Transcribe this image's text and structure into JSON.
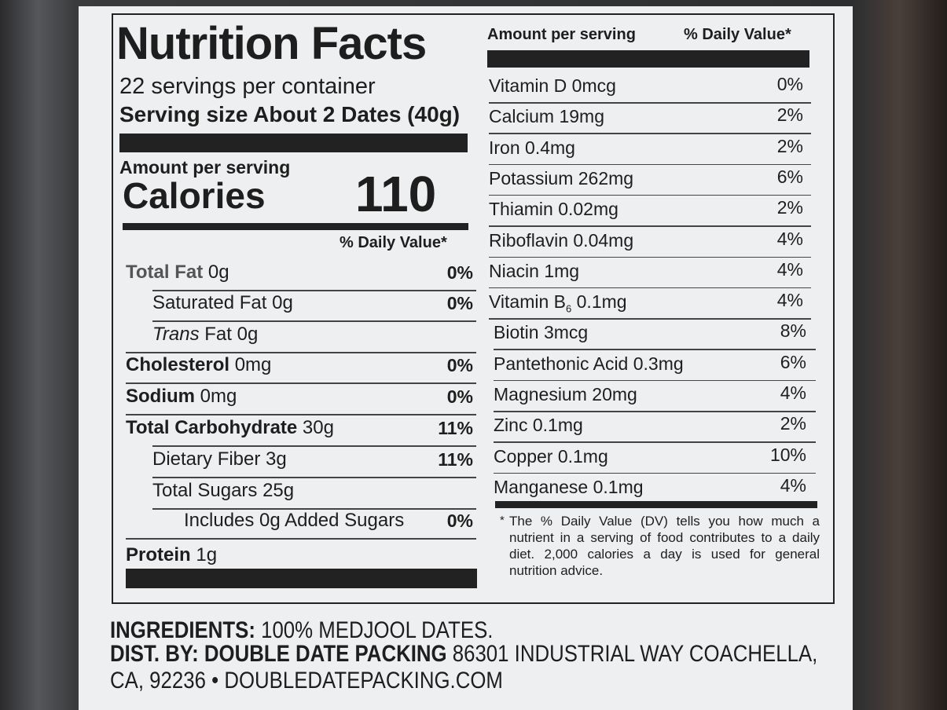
{
  "label": {
    "title": "Nutrition Facts",
    "servings": "22 servings per container",
    "serving_size_label": "Serving size",
    "serving_size_value": "About 2 Dates (40g)",
    "amount_per_serving": "Amount per serving",
    "calories_label": "Calories",
    "calories_value": "110",
    "dv_header": "% Daily Value*",
    "nutrients": [
      {
        "name": "Total Fat",
        "amount": "0g",
        "dv": "0%"
      },
      {
        "name": "Saturated Fat",
        "amount": "0g",
        "dv": "0%"
      },
      {
        "name_italic": "Trans",
        "name": "Fat",
        "amount": "0g"
      },
      {
        "name": "Cholesterol",
        "amount": "0mg",
        "dv": "0%"
      },
      {
        "name": "Sodium",
        "amount": "0mg",
        "dv": "0%"
      },
      {
        "name": "Total Carbohydrate",
        "amount": "30g",
        "dv": "11%"
      },
      {
        "name": "Dietary Fiber",
        "amount": "3g",
        "dv": "11%"
      },
      {
        "name": "Total Sugars",
        "amount": "25g"
      },
      {
        "name": "Includes 0g Added Sugars",
        "dv": "0%"
      },
      {
        "name": "Protein",
        "amount": "1g"
      }
    ],
    "right_header_amount": "Amount per serving",
    "right_header_dv": "% Daily Value*",
    "vitamins": [
      {
        "name": "Vitamin D",
        "amount": "0mcg",
        "dv": "0%"
      },
      {
        "name": "Calcium",
        "amount": "19mg",
        "dv": "2%"
      },
      {
        "name": "Iron",
        "amount": "0.4mg",
        "dv": "2%"
      },
      {
        "name": "Potassium",
        "amount": "262mg",
        "dv": "6%"
      },
      {
        "name": "Thiamin",
        "amount": "0.02mg",
        "dv": "2%"
      },
      {
        "name": "Riboflavin",
        "amount": "0.04mg",
        "dv": "4%"
      },
      {
        "name": "Niacin",
        "amount": "1mg",
        "dv": "4%"
      },
      {
        "name": "Vitamin B",
        "subscript": "6",
        "amount": "0.1mg",
        "dv": "4%"
      },
      {
        "name": "Biotin",
        "amount": "3mcg",
        "dv": "8%"
      },
      {
        "name": "Pantethonic Acid",
        "amount": "0.3mg",
        "dv": "6%"
      },
      {
        "name": "Magnesium",
        "amount": "20mg",
        "dv": "4%"
      },
      {
        "name": "Zinc",
        "amount": "0.1mg",
        "dv": "2%"
      },
      {
        "name": "Copper",
        "amount": "0.1mg",
        "dv": "10%"
      },
      {
        "name": "Manganese",
        "amount": "0.1mg",
        "dv": "4%"
      }
    ],
    "footnote_mark": "*",
    "footnote": "The % Daily Value (DV) tells you how much a nutrient in a serving of food contributes to a daily diet. 2,000 calories a day is used for general nutrition advice."
  },
  "package": {
    "ingredients_label": "INGREDIENTS:",
    "ingredients": "100% MEDJOOL DATES.",
    "dist_label": "DIST. BY: DOUBLE DATE PACKING",
    "address_line1": "86301 INDUSTRIAL WAY COACHELLA,",
    "address_line2": "CA, 92236",
    "bullet": "•",
    "website": "DOUBLEDATEPACKING.COM"
  }
}
